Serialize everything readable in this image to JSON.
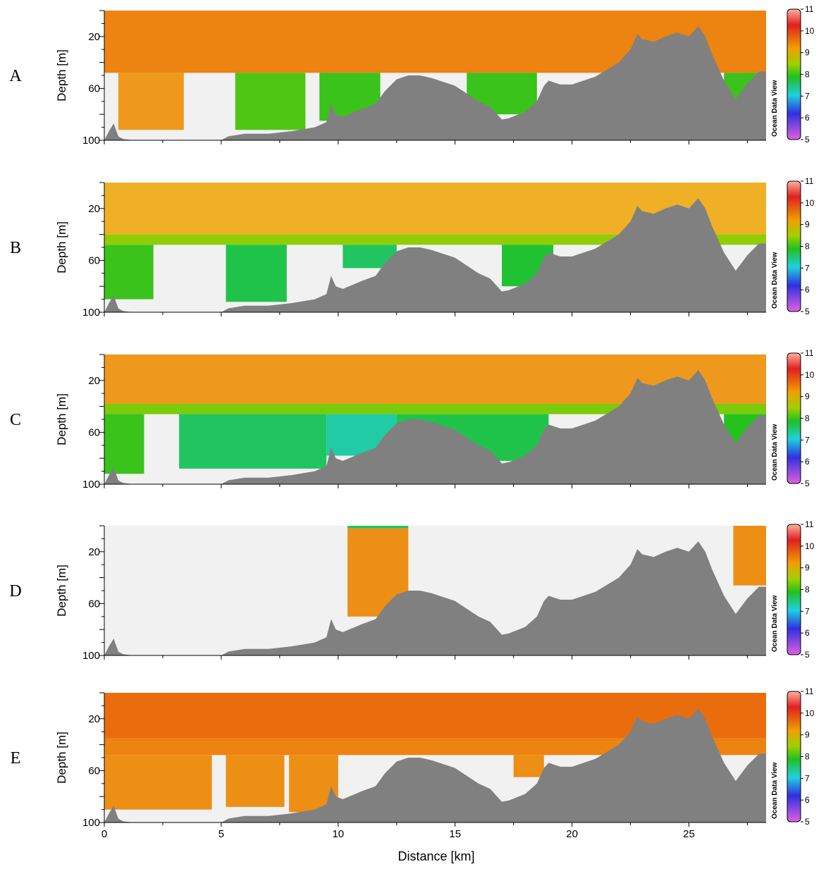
{
  "chart_data": [
    {
      "type": "heatmap",
      "panel_label": "A",
      "ylabel": "Depth [m]",
      "yticks": [
        20,
        60,
        100
      ],
      "ylim": [
        100,
        0
      ],
      "xlim": [
        0,
        28.3
      ],
      "xticks": [
        0,
        5,
        10,
        15,
        20,
        25
      ],
      "colorbar": {
        "ticks": [
          11,
          10,
          9,
          8,
          7,
          6,
          5
        ],
        "label": "Ocean Data View"
      },
      "water_mass": [
        {
          "x0": 0,
          "x1": 28.3,
          "d0": 0,
          "d1": 48,
          "value": 9.4
        },
        {
          "x0": 0.6,
          "x1": 3.4,
          "d0": 48,
          "d1": 92,
          "value": 9.2
        },
        {
          "x0": 5.6,
          "x1": 8.6,
          "d0": 48,
          "d1": 92,
          "value": 8.1
        },
        {
          "x0": 9.2,
          "x1": 11.8,
          "d0": 48,
          "d1": 85,
          "value": 8.0
        },
        {
          "x0": 15.5,
          "x1": 18.5,
          "d0": 48,
          "d1": 80,
          "value": 8.0
        },
        {
          "x0": 26.5,
          "x1": 28.3,
          "d0": 48,
          "d1": 70,
          "value": 8.0
        }
      ]
    },
    {
      "type": "heatmap",
      "panel_label": "B",
      "ylabel": "Depth [m]",
      "yticks": [
        20,
        60,
        100
      ],
      "ylim": [
        100,
        0
      ],
      "xlim": [
        0,
        28.3
      ],
      "xticks": [
        0,
        5,
        10,
        15,
        20,
        25
      ],
      "colorbar": {
        "ticks": [
          11,
          10,
          9,
          8,
          7,
          6,
          5
        ],
        "label": "Ocean Data View"
      },
      "water_mass": [
        {
          "x0": 0,
          "x1": 28.3,
          "d0": 0,
          "d1": 40,
          "value": 9.0
        },
        {
          "x0": 0,
          "x1": 28.3,
          "d0": 40,
          "d1": 48,
          "value": 8.4
        },
        {
          "x0": 0,
          "x1": 2.1,
          "d0": 48,
          "d1": 90,
          "value": 8.0
        },
        {
          "x0": 5.2,
          "x1": 7.8,
          "d0": 48,
          "d1": 92,
          "value": 7.7
        },
        {
          "x0": 10.2,
          "x1": 12.5,
          "d0": 48,
          "d1": 66,
          "value": 7.6
        },
        {
          "x0": 17.0,
          "x1": 19.2,
          "d0": 48,
          "d1": 80,
          "value": 7.8
        }
      ]
    },
    {
      "type": "heatmap",
      "panel_label": "C",
      "ylabel": "Depth [m]",
      "yticks": [
        20,
        60,
        100
      ],
      "ylim": [
        100,
        0
      ],
      "xlim": [
        0,
        28.3
      ],
      "xticks": [
        0,
        5,
        10,
        15,
        20,
        25
      ],
      "colorbar": {
        "ticks": [
          11,
          10,
          9,
          8,
          7,
          6,
          5
        ],
        "label": "Ocean Data View"
      },
      "water_mass": [
        {
          "x0": 0,
          "x1": 28.3,
          "d0": 0,
          "d1": 38,
          "value": 9.2
        },
        {
          "x0": 0,
          "x1": 28.3,
          "d0": 38,
          "d1": 46,
          "value": 8.3
        },
        {
          "x0": 0,
          "x1": 1.7,
          "d0": 46,
          "d1": 92,
          "value": 8.0
        },
        {
          "x0": 3.2,
          "x1": 9.5,
          "d0": 46,
          "d1": 88,
          "value": 7.6
        },
        {
          "x0": 9.5,
          "x1": 12.5,
          "d0": 46,
          "d1": 78,
          "value": 7.3
        },
        {
          "x0": 12.5,
          "x1": 19.0,
          "d0": 46,
          "d1": 82,
          "value": 7.7
        },
        {
          "x0": 26.5,
          "x1": 28.3,
          "d0": 46,
          "d1": 70,
          "value": 7.9
        }
      ]
    },
    {
      "type": "heatmap",
      "panel_label": "D",
      "ylabel": "Depth [m]",
      "yticks": [
        20,
        60,
        100
      ],
      "ylim": [
        100,
        0
      ],
      "xlim": [
        0,
        28.3
      ],
      "xticks": [
        0,
        5,
        10,
        15,
        20,
        25
      ],
      "colorbar": {
        "ticks": [
          11,
          10,
          9,
          8,
          7,
          6,
          5
        ],
        "label": "Ocean Data View"
      },
      "water_mass": [
        {
          "x0": 10.4,
          "x1": 13.0,
          "d0": 0,
          "d1": 2,
          "value": 7.6
        },
        {
          "x0": 10.4,
          "x1": 13.0,
          "d0": 2,
          "d1": 70,
          "value": 9.3
        },
        {
          "x0": 26.9,
          "x1": 28.3,
          "d0": 0,
          "d1": 46,
          "value": 9.3
        }
      ]
    },
    {
      "type": "heatmap",
      "panel_label": "E",
      "ylabel": "Depth [m]",
      "yticks": [
        20,
        60,
        100
      ],
      "ylim": [
        100,
        0
      ],
      "xlim": [
        0,
        28.3
      ],
      "xticks": [
        0,
        5,
        10,
        15,
        20,
        25
      ],
      "xlabel": "Distance [km]",
      "colorbar": {
        "ticks": [
          11,
          10,
          9,
          8,
          7,
          6,
          5
        ],
        "label": "Ocean Data View"
      },
      "water_mass": [
        {
          "x0": 0,
          "x1": 28.3,
          "d0": 0,
          "d1": 35,
          "value": 9.6
        },
        {
          "x0": 0,
          "x1": 28.3,
          "d0": 35,
          "d1": 48,
          "value": 9.4
        },
        {
          "x0": 0,
          "x1": 4.6,
          "d0": 48,
          "d1": 90,
          "value": 9.3
        },
        {
          "x0": 5.2,
          "x1": 7.7,
          "d0": 48,
          "d1": 88,
          "value": 9.3
        },
        {
          "x0": 7.9,
          "x1": 10.0,
          "d0": 48,
          "d1": 92,
          "value": 9.3
        },
        {
          "x0": 17.5,
          "x1": 18.8,
          "d0": 48,
          "d1": 65,
          "value": 9.3
        }
      ]
    }
  ],
  "bathymetry": {
    "distance_km": [
      0,
      0.2,
      0.4,
      0.6,
      0.8,
      1.2,
      2,
      3,
      4,
      5,
      5.3,
      6,
      7,
      8,
      9,
      9.5,
      9.7,
      9.9,
      10.2,
      11,
      11.6,
      12,
      12.5,
      13,
      13.5,
      14,
      15,
      16,
      16.5,
      17,
      17.3,
      18,
      18.5,
      18.8,
      19,
      19.5,
      20,
      21,
      22,
      22.5,
      22.8,
      23,
      23.5,
      24,
      24.5,
      25,
      25.4,
      25.7,
      26,
      26.5,
      27,
      27.5,
      28,
      28.3
    ],
    "depth_m": [
      100,
      93,
      87,
      97,
      99,
      100,
      100,
      100,
      100,
      100,
      97,
      95,
      95,
      93,
      90,
      86,
      72,
      80,
      82,
      76,
      72,
      62,
      53,
      50,
      50,
      52,
      58,
      70,
      74,
      84,
      83,
      78,
      70,
      58,
      54,
      57,
      57,
      51,
      40,
      30,
      18,
      22,
      24,
      20,
      17,
      20,
      12,
      20,
      34,
      54,
      68,
      56,
      47,
      47
    ]
  },
  "colors": {
    "background_nodata": "#f1f1f1",
    "bathymetry": "#808080",
    "colormap": [
      "#e060e0",
      "#3030e0",
      "#20d0e0",
      "#20c020",
      "#a0d000",
      "#f0a000",
      "#e02020",
      "#ffb0a0"
    ]
  },
  "axis_labels": {
    "ylabel": "Depth [m]",
    "xlabel": "Distance [km]",
    "odv": "Ocean Data View"
  },
  "panel_labels": [
    "A",
    "B",
    "C",
    "D",
    "E"
  ]
}
